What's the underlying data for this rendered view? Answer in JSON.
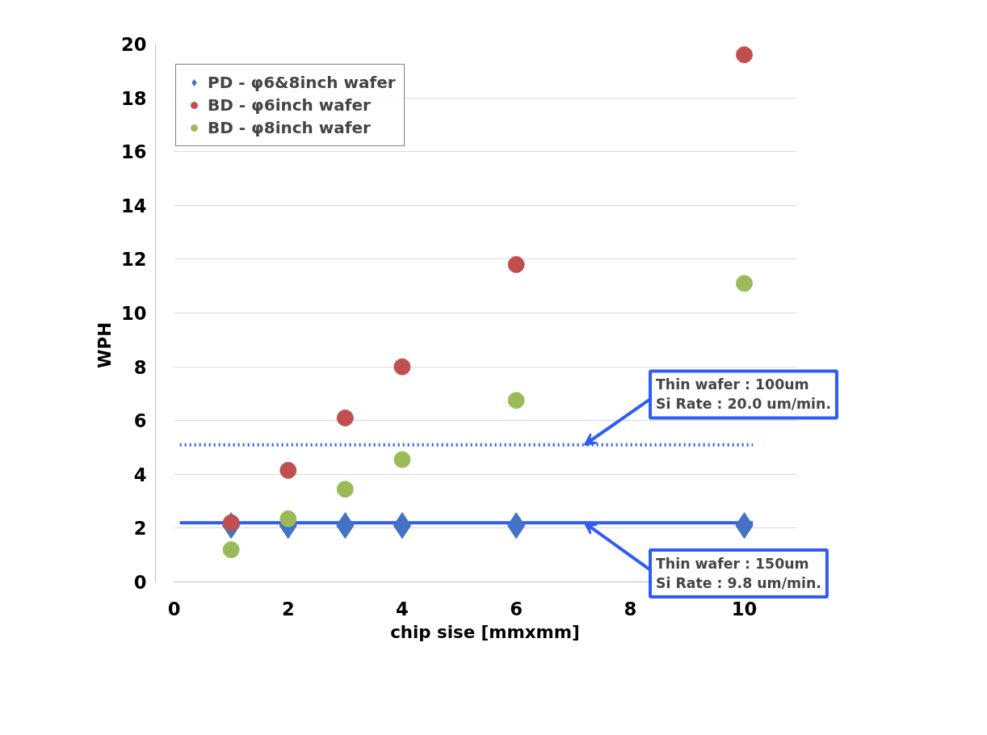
{
  "chart_data": {
    "type": "scatter",
    "xlabel": "chip sise [mmxmm]",
    "ylabel": "WPH",
    "xlim": [
      0,
      10.9
    ],
    "xticks": [
      0,
      2,
      4,
      6,
      8,
      10
    ],
    "ylim": [
      0,
      20
    ],
    "yticks": [
      0,
      2,
      4,
      6,
      8,
      10,
      12,
      14,
      16,
      18,
      20
    ],
    "grid": "y",
    "legend": "top left",
    "series": [
      {
        "name": "PD - φ6&8inch wafer",
        "color": "#4472c4",
        "marker": "diamond",
        "x": [
          1,
          2,
          3,
          4,
          6,
          10
        ],
        "values": [
          2.1,
          2.1,
          2.1,
          2.1,
          2.1,
          2.1
        ]
      },
      {
        "name": "BD - φ6inch wafer",
        "color": "#c0504d",
        "marker": "circle",
        "x": [
          1,
          2,
          3,
          4,
          6,
          10
        ],
        "values": [
          2.2,
          4.15,
          6.1,
          8.0,
          11.8,
          19.6
        ]
      },
      {
        "name": "BD - φ8inch wafer",
        "color": "#9bbb59",
        "marker": "circle",
        "x": [
          1,
          2,
          3,
          4,
          6,
          10
        ],
        "values": [
          1.2,
          2.35,
          3.45,
          4.55,
          6.75,
          11.1
        ]
      }
    ],
    "ref_lines": [
      {
        "axis": "y",
        "value": 2.2,
        "color": "#2e5cf5",
        "line_style": "solid"
      },
      {
        "axis": "y",
        "value": 5.1,
        "color": "#2e5cf5",
        "line_style": "dotted"
      }
    ],
    "annotations": [
      {
        "text": "Thin wafer : 150um\nSi Rate : 9.8 um/min.",
        "x": 7.2,
        "y": 2.2
      },
      {
        "text": "Thin wafer : 100um\nSi Rate : 20.0 um/min.",
        "x": 7.2,
        "y": 5.1
      }
    ]
  }
}
